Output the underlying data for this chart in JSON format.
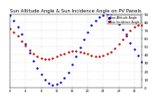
{
  "title": "Sun Altitude Angle & Sun Incidence Angle on PV Panels",
  "title_fontsize": 3.8,
  "legend_labels": [
    "Sun Altitude Angle",
    "Sun Incidence Angle"
  ],
  "legend_colors": [
    "#0000cc",
    "#cc0000"
  ],
  "blue_y": [
    88,
    82,
    74,
    65,
    54,
    43,
    33,
    24,
    16,
    10,
    5,
    3,
    4,
    7,
    12,
    19,
    28,
    38,
    49,
    59,
    68,
    76,
    82,
    86,
    89,
    90,
    88,
    84,
    78,
    71,
    63,
    55,
    47,
    39,
    32
  ],
  "red_y": [
    72,
    68,
    63,
    57,
    51,
    46,
    41,
    38,
    36,
    35,
    35,
    36,
    38,
    40,
    42,
    44,
    45,
    45,
    44,
    43,
    41,
    39,
    38,
    38,
    39,
    41,
    44,
    48,
    53,
    59,
    65,
    70,
    74,
    76,
    77
  ],
  "n_points": 35,
  "ylim": [
    0,
    90
  ],
  "ytick_values": [
    0,
    10,
    20,
    30,
    40,
    50,
    60,
    70,
    80,
    90
  ],
  "ytick_labels": [
    "0",
    "10",
    "20",
    "30",
    "40",
    "50",
    "60",
    "70",
    "80",
    "90"
  ],
  "background_color": "#ffffff",
  "grid_color": "#bbbbbb",
  "marker_size": 1.5,
  "tick_fontsize": 2.8,
  "xtick_fontsize": 2.5
}
